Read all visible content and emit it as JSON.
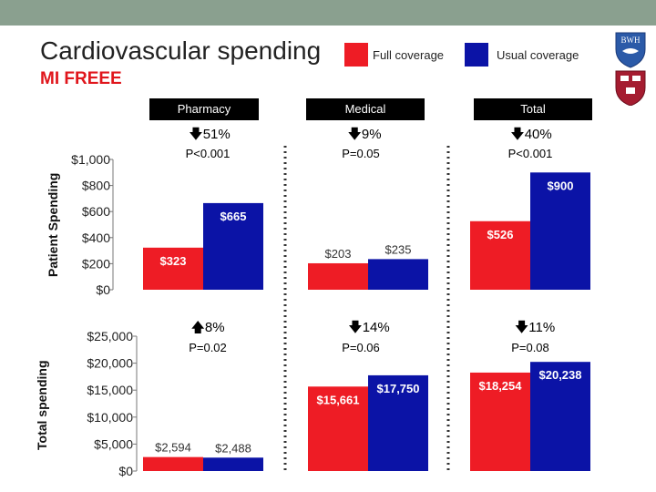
{
  "title": "Cardiovascular spending",
  "subtitle": "MI FREEE",
  "logo_text": "BWH",
  "legend": [
    {
      "label": "Full coverage",
      "color": "#ee1c25"
    },
    {
      "label": "Usual coverage",
      "color": "#0b13a6"
    }
  ],
  "headers": [
    "Pharmacy",
    "Medical",
    "Total"
  ],
  "top_changes": [
    {
      "arrow": "down",
      "glyph": "🡇",
      "text": "51%",
      "p": "P<0.001"
    },
    {
      "arrow": "down",
      "glyph": "🡇",
      "text": "9%",
      "p": "P=0.05"
    },
    {
      "arrow": "down",
      "glyph": "🡇",
      "text": "40%",
      "p": "P<0.001"
    }
  ],
  "bottom_changes": [
    {
      "arrow": "up",
      "glyph": "🡅",
      "text": "8%",
      "p": "P=0.02"
    },
    {
      "arrow": "down",
      "glyph": "🡇",
      "text": "14%",
      "p": "P=0.06"
    },
    {
      "arrow": "down",
      "glyph": "🡇",
      "text": "11%",
      "p": "P=0.08"
    }
  ],
  "chart_data": [
    {
      "type": "bar",
      "title": "Patient Spending",
      "ylabel": "Patient Spending",
      "ylim": [
        0,
        1000
      ],
      "yticks": [
        "$0",
        "$200",
        "$400",
        "$600",
        "$800",
        "$1,000"
      ],
      "categories": [
        "Pharmacy",
        "Medical",
        "Total"
      ],
      "series": [
        {
          "name": "Full coverage",
          "values": [
            323,
            203,
            526
          ],
          "labels": [
            "$323",
            "$203",
            "$526"
          ]
        },
        {
          "name": "Usual coverage",
          "values": [
            665,
            235,
            900
          ],
          "labels": [
            "$665",
            "$235",
            "$900"
          ]
        }
      ]
    },
    {
      "type": "bar",
      "title": "Total spending",
      "ylabel": "Total spending",
      "ylim": [
        0,
        25000
      ],
      "yticks": [
        "$0",
        "$5,000",
        "$10,000",
        "$15,000",
        "$20,000",
        "$25,000"
      ],
      "categories": [
        "Pharmacy",
        "Medical",
        "Total"
      ],
      "series": [
        {
          "name": "Full coverage",
          "values": [
            2594,
            15661,
            18254
          ],
          "labels": [
            "$2,594",
            "$15,661",
            "$18,254"
          ]
        },
        {
          "name": "Usual coverage",
          "values": [
            2488,
            17750,
            20238
          ],
          "labels": [
            "$2,488",
            "$17,750",
            "$20,238"
          ]
        }
      ]
    }
  ]
}
